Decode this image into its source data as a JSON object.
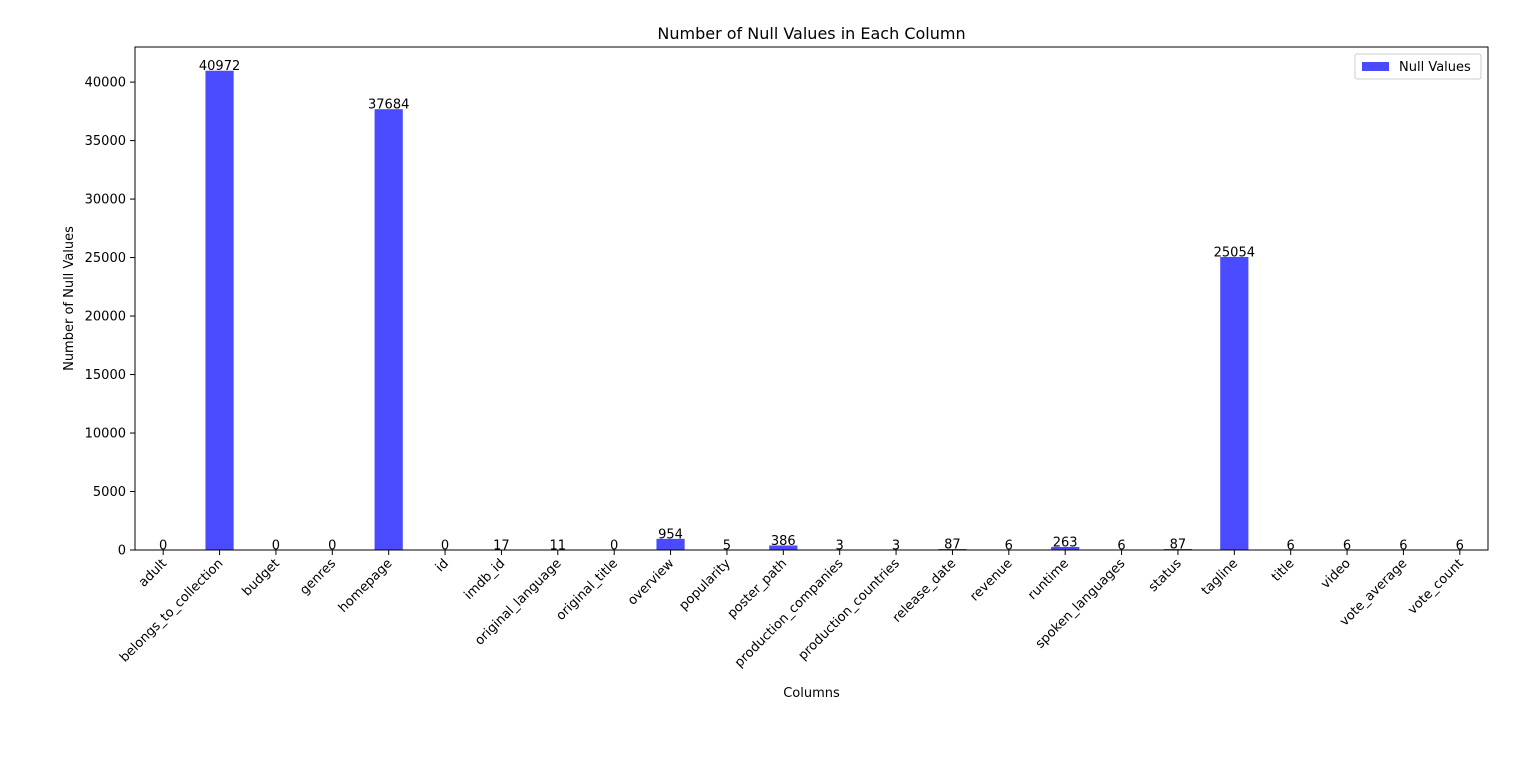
{
  "chart_data": {
    "type": "bar",
    "title": "Number of Null Values in Each Column",
    "xlabel": "Columns",
    "ylabel": "Number of Null Values",
    "ylim": [
      0,
      43000
    ],
    "yticks": [
      0,
      5000,
      10000,
      15000,
      20000,
      25000,
      30000,
      35000,
      40000
    ],
    "grid": false,
    "legend_position": "top-right",
    "categories": [
      "adult",
      "belongs_to_collection",
      "budget",
      "genres",
      "homepage",
      "id",
      "imdb_id",
      "original_language",
      "original_title",
      "overview",
      "popularity",
      "poster_path",
      "production_companies",
      "production_countries",
      "release_date",
      "revenue",
      "runtime",
      "spoken_languages",
      "status",
      "tagline",
      "title",
      "video",
      "vote_average",
      "vote_count"
    ],
    "series": [
      {
        "name": "Null Values",
        "color": "#4a4aff",
        "values": [
          0,
          40972,
          0,
          0,
          37684,
          0,
          17,
          11,
          0,
          954,
          5,
          386,
          3,
          3,
          87,
          6,
          263,
          6,
          87,
          25054,
          6,
          6,
          6,
          6
        ]
      }
    ]
  }
}
